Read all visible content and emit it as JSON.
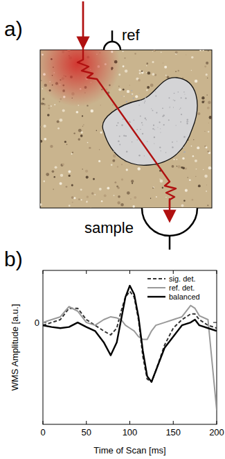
{
  "diagram": {
    "panel_label": "a)",
    "labels": {
      "reference_detector": "ref",
      "sample_detector": "sample"
    }
  },
  "chart_data": {
    "type": "line",
    "panel_label": "b)",
    "x_label": "Time of Scan [ms]",
    "y_label": "WMS Amplitude [a.u.]",
    "x": [
      0,
      10,
      20,
      30,
      40,
      50,
      60,
      70,
      78,
      85,
      90,
      95,
      100,
      105,
      110,
      115,
      120,
      125,
      130,
      140,
      150,
      160,
      170,
      175,
      180,
      190,
      200
    ],
    "series": [
      {
        "name": "sig. det.",
        "color": "#333333",
        "line_style": "dashed",
        "values": [
          -0.05,
          0,
          0.05,
          0.25,
          0.25,
          0.05,
          -0.05,
          -0.15,
          -0.22,
          -0.1,
          0.2,
          0.45,
          0.55,
          0.45,
          0.05,
          -0.6,
          -1.0,
          -1.05,
          -0.85,
          -0.4,
          -0.1,
          0.05,
          0.15,
          0.15,
          0.05,
          -0.05,
          -0.1
        ]
      },
      {
        "name": "ref. det.",
        "color": "#999999",
        "line_style": "solid",
        "values": [
          0,
          0.05,
          0.1,
          0.28,
          0.2,
          0,
          -0.05,
          0.05,
          0.1,
          0.08,
          0.05,
          -0.05,
          -0.1,
          -0.15,
          -0.25,
          -0.3,
          -0.3,
          -0.15,
          -0.05,
          0,
          0.05,
          0.1,
          0.3,
          0.25,
          0.12,
          0.05,
          -1.55
        ]
      },
      {
        "name": "balanced",
        "color": "#000000",
        "line_style": "solid",
        "values": [
          -0.05,
          -0.08,
          -0.1,
          -0.08,
          0,
          -0.08,
          -0.15,
          -0.35,
          -0.58,
          -0.35,
          0.05,
          0.45,
          0.65,
          0.5,
          0.1,
          -0.5,
          -0.95,
          -1.05,
          -0.85,
          -0.45,
          -0.25,
          -0.05,
          0,
          0.05,
          -0.05,
          -0.1,
          -0.15
        ]
      }
    ],
    "xlim": [
      0,
      200
    ],
    "xticks": [
      0,
      50,
      100,
      150,
      200
    ],
    "ylim": [
      -1.8,
      0.92
    ],
    "yticks": [
      0
    ],
    "legend": "upper right",
    "grid": false
  }
}
